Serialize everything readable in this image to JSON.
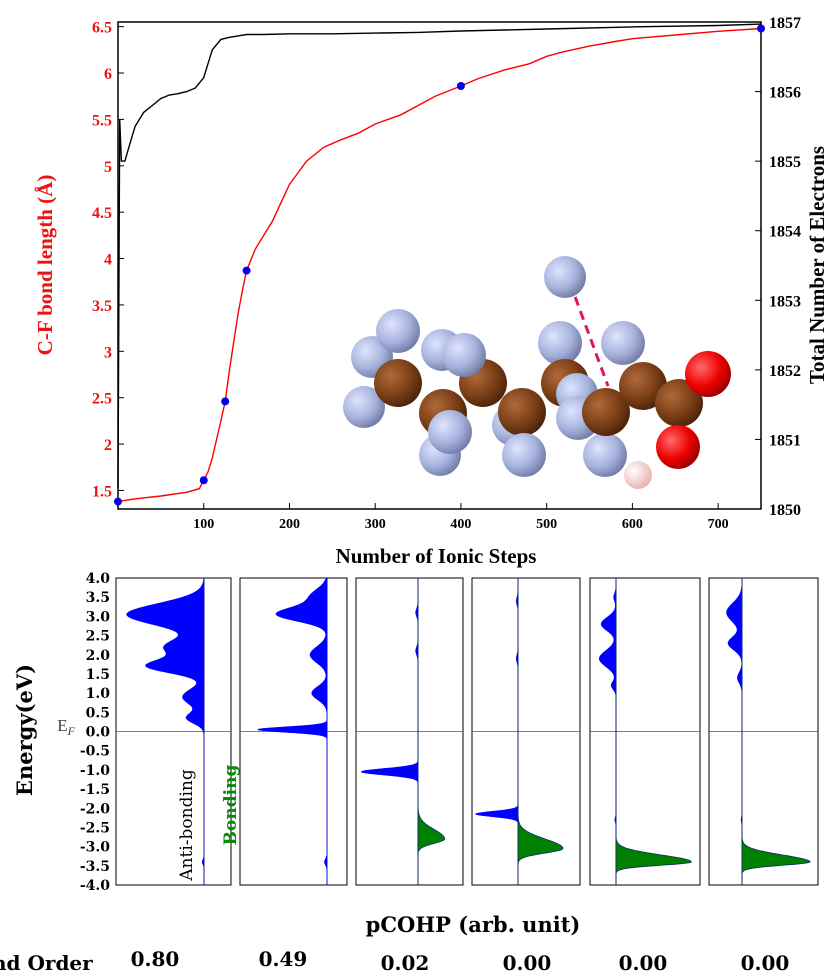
{
  "chart_data": [
    {
      "type": "line",
      "xlabel": "Number of Ionic Steps",
      "ylabel": "C-F bond length (Å)",
      "ylabel_right": "Total Number of Electrons",
      "xlim": [
        0,
        750
      ],
      "ylim": [
        1.3,
        6.55
      ],
      "y2lim": [
        1850,
        1857
      ],
      "x_ticks": [
        "100",
        "200",
        "300",
        "400",
        "500",
        "600",
        "700"
      ],
      "y_ticks": [
        "1.5",
        "2",
        "2.5",
        "3",
        "3.5",
        "4",
        "4.5",
        "5",
        "5.5",
        "6",
        "6.5"
      ],
      "y2_ticks": [
        "1850",
        "1851",
        "1852",
        "1853",
        "1854",
        "1855",
        "1856",
        "1857"
      ],
      "colors": {
        "bond_length": "#ff0000",
        "electrons": "#000000",
        "markers": "#0000ee"
      },
      "series": [
        {
          "name": "C-F bond length",
          "axis": "left",
          "x": [
            0,
            20,
            50,
            80,
            95,
            100,
            105,
            110,
            115,
            120,
            125,
            130,
            135,
            140,
            145,
            150,
            160,
            170,
            180,
            190,
            200,
            220,
            240,
            260,
            280,
            300,
            330,
            350,
            370,
            400,
            420,
            450,
            480,
            500,
            520,
            550,
            580,
            600,
            650,
            700,
            750
          ],
          "y": [
            1.38,
            1.41,
            1.44,
            1.48,
            1.52,
            1.61,
            1.7,
            1.85,
            2.05,
            2.25,
            2.46,
            2.8,
            3.1,
            3.4,
            3.65,
            3.87,
            4.1,
            4.25,
            4.4,
            4.6,
            4.8,
            5.05,
            5.2,
            5.28,
            5.35,
            5.45,
            5.55,
            5.65,
            5.75,
            5.86,
            5.94,
            6.03,
            6.1,
            6.18,
            6.23,
            6.29,
            6.34,
            6.37,
            6.41,
            6.45,
            6.48
          ]
        },
        {
          "name": "Total Number of Electrons",
          "axis": "right",
          "x": [
            0,
            2,
            4,
            8,
            15,
            20,
            30,
            40,
            50,
            60,
            70,
            80,
            90,
            100,
            105,
            110,
            120,
            130,
            140,
            150,
            170,
            200,
            250,
            300,
            350,
            400,
            500,
            600,
            700,
            750
          ],
          "y": [
            1850.3,
            1855.6,
            1855.0,
            1855.0,
            1855.3,
            1855.5,
            1855.7,
            1855.8,
            1855.9,
            1855.95,
            1855.97,
            1856.0,
            1856.05,
            1856.2,
            1856.4,
            1856.6,
            1856.75,
            1856.78,
            1856.8,
            1856.82,
            1856.82,
            1856.83,
            1856.83,
            1856.84,
            1856.85,
            1856.87,
            1856.9,
            1856.93,
            1856.95,
            1856.97
          ]
        },
        {
          "name": "markers",
          "axis": "left",
          "x": [
            0,
            100,
            125,
            150,
            400,
            750
          ],
          "y": [
            1.38,
            1.61,
            2.46,
            3.87,
            5.86,
            6.48
          ]
        }
      ]
    },
    {
      "type": "area",
      "xlabel": "pCOHP (arb. unit)",
      "ylabel": "Energy(eV)",
      "ylim": [
        -4.0,
        4.0
      ],
      "y_ticks": [
        "4.0",
        "3.5",
        "3.0",
        "2.5",
        "2.0",
        "1.5",
        "1.0",
        "0.5",
        "0.0",
        "-0.5",
        "-1.0",
        "-1.5",
        "-2.0",
        "-2.5",
        "-3.0",
        "-3.5",
        "-4.0"
      ],
      "fermi_label": "E",
      "fermi_sub": "F",
      "antibonding_label": "Anti-bonding",
      "bonding_label": "Bonding",
      "bond_order_label": "nd Order",
      "bond_orders": [
        "0.80",
        "0.49",
        "0.02",
        "0.00",
        "0.00",
        "0.00"
      ],
      "colors": {
        "antibonding": "#0000ff",
        "bonding": "#008000"
      }
    }
  ]
}
